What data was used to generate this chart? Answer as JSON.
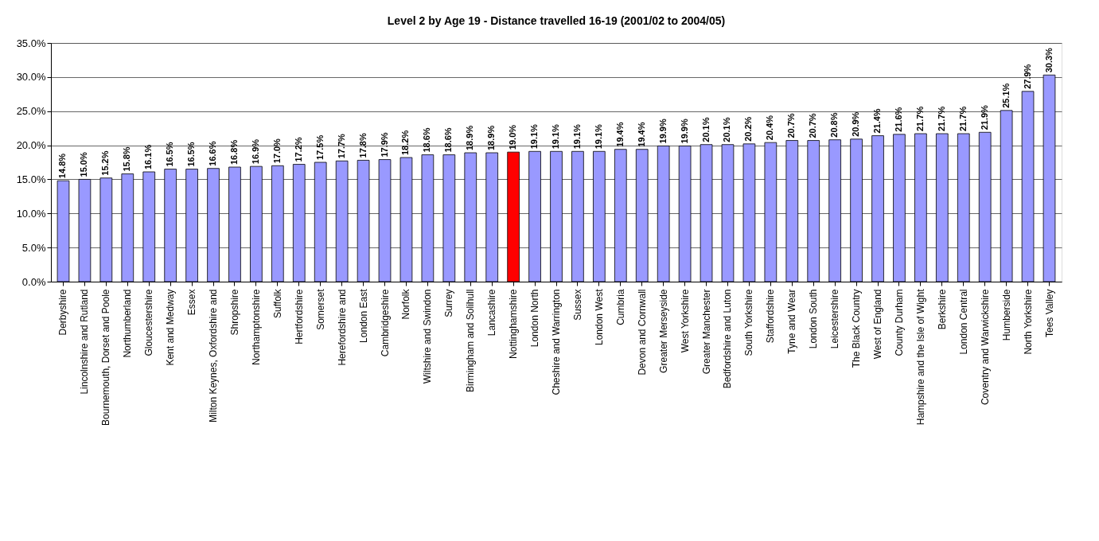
{
  "chart_data": {
    "type": "bar",
    "title": "Level 2 by Age 19 - Distance travelled 16-19 (2001/02 to 2004/05)",
    "categories": [
      "Derbyshire",
      "Lincolnshire and Rutland",
      "Bournemouth, Dorset and Poole",
      "Northumberland",
      "Gloucestershire",
      "Kent and Medway",
      "Essex",
      "Milton Keynes, Oxfordshire and",
      "Shropshire",
      "Northamptonshire",
      "Suffolk",
      "Hertfordshire",
      "Somerset",
      "Herefordshire and",
      "London East",
      "Cambridgeshire",
      "Norfolk",
      "Wiltshire and Swindon",
      "Surrey",
      "Birmingham and Solihull",
      "Lancashire",
      "Nottinghamshire",
      "London North",
      "Cheshire and Warrington",
      "Sussex",
      "London West",
      "Cumbria",
      "Devon and Cornwall",
      "Greater Merseyside",
      "West Yorkshire",
      "Greater Manchester",
      "Bedfordshire and Luton",
      "South Yorkshire",
      "Staffordshire",
      "Tyne and Wear",
      "London South",
      "Leicestershire",
      "The Black Country",
      "West of England",
      "County Durham",
      "Hampshire and the Isle of Wight",
      "Berkshire",
      "London Central",
      "Coventry and Warwickshire",
      "Humberside",
      "North Yorkshire",
      "Tees Valley"
    ],
    "values": [
      14.8,
      15.0,
      15.2,
      15.8,
      16.1,
      16.5,
      16.5,
      16.6,
      16.8,
      16.9,
      17.0,
      17.2,
      17.5,
      17.7,
      17.8,
      17.9,
      18.2,
      18.6,
      18.6,
      18.9,
      18.9,
      19.0,
      19.1,
      19.1,
      19.1,
      19.1,
      19.4,
      19.4,
      19.9,
      19.9,
      20.1,
      20.1,
      20.2,
      20.4,
      20.7,
      20.7,
      20.8,
      20.9,
      21.4,
      21.6,
      21.7,
      21.7,
      21.7,
      21.9,
      25.1,
      27.9,
      30.3
    ],
    "value_labels": [
      "14.8%",
      "15.0%",
      "15.2%",
      "15.8%",
      "16.1%",
      "16.5%",
      "16.5%",
      "16.6%",
      "16.8%",
      "16.9%",
      "17.0%",
      "17.2%",
      "17.5%",
      "17.7%",
      "17.8%",
      "17.9%",
      "18.2%",
      "18.6%",
      "18.6%",
      "18.9%",
      "18.9%",
      "19.0%",
      "19.1%",
      "19.1%",
      "19.1%",
      "19.1%",
      "19.4%",
      "19.4%",
      "19.9%",
      "19.9%",
      "20.1%",
      "20.1%",
      "20.2%",
      "20.4%",
      "20.7%",
      "20.7%",
      "20.8%",
      "20.9%",
      "21.4%",
      "21.6%",
      "21.7%",
      "21.7%",
      "21.7%",
      "21.9%",
      "25.1%",
      "27.9%",
      "30.3%"
    ],
    "colors": [
      "#9999ff",
      "#9999ff",
      "#9999ff",
      "#9999ff",
      "#9999ff",
      "#9999ff",
      "#9999ff",
      "#9999ff",
      "#9999ff",
      "#9999ff",
      "#9999ff",
      "#9999ff",
      "#9999ff",
      "#9999ff",
      "#9999ff",
      "#9999ff",
      "#9999ff",
      "#9999ff",
      "#9999ff",
      "#9999ff",
      "#9999ff",
      "#ff0000",
      "#9999ff",
      "#9999ff",
      "#9999ff",
      "#9999ff",
      "#9999ff",
      "#9999ff",
      "#9999ff",
      "#9999ff",
      "#9999ff",
      "#9999ff",
      "#9999ff",
      "#9999ff",
      "#9999ff",
      "#9999ff",
      "#9999ff",
      "#9999ff",
      "#9999ff",
      "#9999ff",
      "#9999ff",
      "#9999ff",
      "#9999ff",
      "#9999ff",
      "#9999ff",
      "#9999ff",
      "#9999ff"
    ],
    "ylim": [
      0,
      35
    ],
    "yticks": [
      {
        "value": 0,
        "label": "0.0%"
      },
      {
        "value": 5,
        "label": "5.0%"
      },
      {
        "value": 10,
        "label": "10.0%"
      },
      {
        "value": 15,
        "label": "15.0%"
      },
      {
        "value": 20,
        "label": "20.0%"
      },
      {
        "value": 25,
        "label": "25.0%"
      },
      {
        "value": 30,
        "label": "30.0%"
      },
      {
        "value": 35,
        "label": "35.0%"
      }
    ],
    "grid": "y"
  }
}
